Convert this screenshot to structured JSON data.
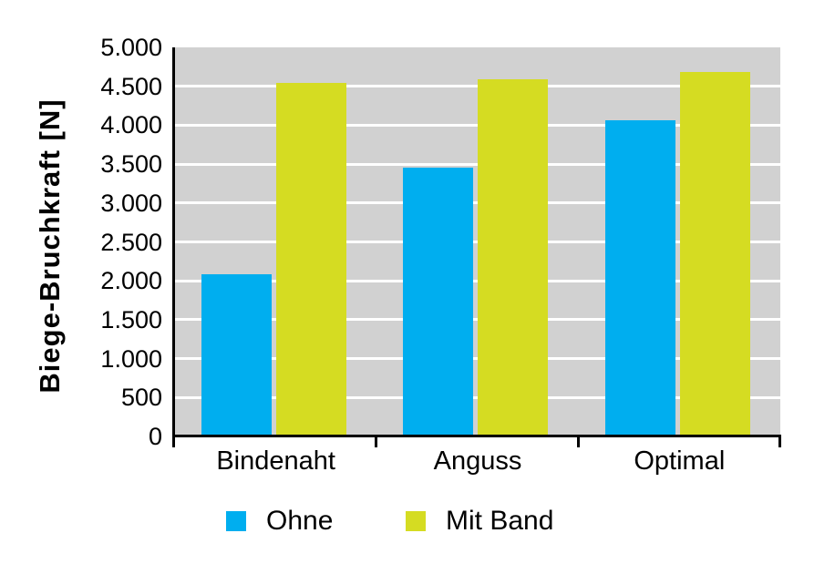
{
  "chart_data": {
    "type": "bar",
    "title": "",
    "xlabel": "",
    "ylabel": "Biege-Bruchkraft [N]",
    "categories": [
      "Bindenaht",
      "Anguss",
      "Optimal"
    ],
    "series": [
      {
        "name": "Ohne",
        "color": "#00AEEF",
        "values": [
          2080,
          3450,
          4060
        ]
      },
      {
        "name": "Mit Band",
        "color": "#D5DC22",
        "values": [
          4540,
          4590,
          4680
        ]
      }
    ],
    "ylim": [
      0,
      5000
    ],
    "ytick_step": 500,
    "ytick_labels": [
      "0",
      "500",
      "1.000",
      "1.500",
      "2.000",
      "2.500",
      "3.000",
      "3.500",
      "4.000",
      "4.500",
      "5.000"
    ],
    "grid": true,
    "legend_position": "bottom",
    "colors": {
      "plot_background": "#D1D1D1",
      "gridline": "#FFFFFF",
      "axis": "#000000",
      "text": "#000000"
    }
  }
}
